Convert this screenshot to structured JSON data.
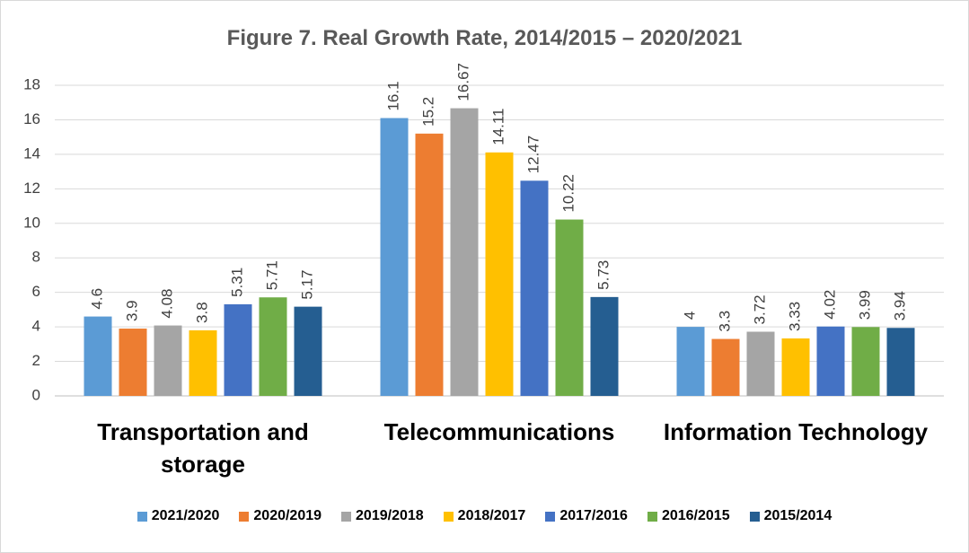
{
  "chart_data": {
    "type": "bar",
    "title": "Figure 7. Real Growth Rate, 2014/2015 – 2020/2021",
    "categories": [
      "Transportation and storage",
      "Telecommunications",
      "Information Technology"
    ],
    "series": [
      {
        "name": "2021/2020",
        "color": "#5b9bd5",
        "values": [
          4.6,
          16.1,
          4
        ]
      },
      {
        "name": "2020/2019",
        "color": "#ed7d31",
        "values": [
          3.9,
          15.2,
          3.3
        ]
      },
      {
        "name": "2019/2018",
        "color": "#a5a5a5",
        "values": [
          4.08,
          16.67,
          3.72
        ]
      },
      {
        "name": "2018/2017",
        "color": "#ffc000",
        "values": [
          3.8,
          14.11,
          3.33
        ]
      },
      {
        "name": "2017/2016",
        "color": "#4472c4",
        "values": [
          5.31,
          12.47,
          4.02
        ]
      },
      {
        "name": "2016/2015",
        "color": "#70ad47",
        "values": [
          5.71,
          10.22,
          3.99
        ]
      },
      {
        "name": "2015/2014",
        "color": "#255e91",
        "values": [
          5.17,
          5.73,
          3.94
        ]
      }
    ],
    "ylim": [
      0,
      18
    ],
    "yticks": [
      0,
      2,
      4,
      6,
      8,
      10,
      12,
      14,
      16,
      18
    ],
    "grid": true,
    "legend": "bottom"
  }
}
